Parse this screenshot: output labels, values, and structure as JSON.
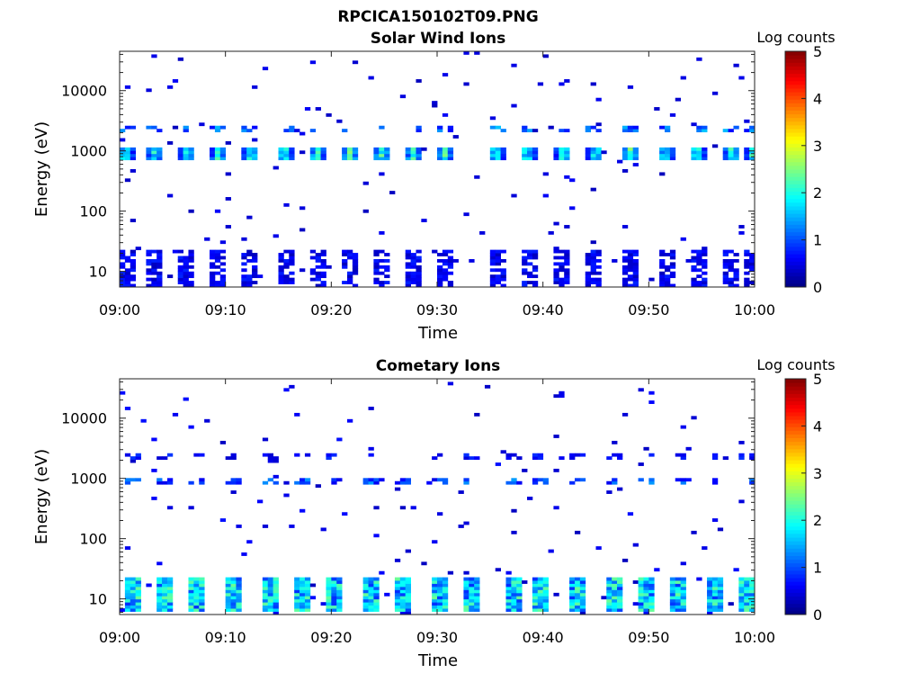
{
  "figure": {
    "filename": "RPCICA150102T09.PNG"
  },
  "chart_data": [
    {
      "type": "heatmap",
      "title": "Solar Wind Ions",
      "xlabel": "Time",
      "ylabel": "Energy (eV)",
      "x_range": [
        "09:00",
        "10:00"
      ],
      "x_ticks": [
        "09:00",
        "09:10",
        "09:20",
        "09:30",
        "09:40",
        "09:50",
        "10:00"
      ],
      "y_scale": "log",
      "y_range": [
        5.5,
        45000
      ],
      "y_ticks": [
        10,
        100,
        1000,
        10000
      ],
      "y_tick_labels": [
        "10",
        "100",
        "1000",
        "10000"
      ],
      "colorbar": {
        "label": "Log counts",
        "range": [
          0,
          5
        ],
        "ticks": [
          "0",
          "1",
          "2",
          "3",
          "4",
          "5"
        ],
        "colormap": "jet"
      },
      "band_center_eV": 900,
      "band_secondary_eV": 2200,
      "band_peak_log_counts": 2.6,
      "burst_minutes": [
        0.3,
        3.1,
        6.1,
        9.1,
        12.2,
        15.3,
        18.4,
        21.5,
        24.5,
        27.5,
        30.5,
        35.3,
        38.3,
        41.7,
        44.7,
        48.0,
        51.3,
        54.3,
        57.6,
        59.6
      ]
    },
    {
      "type": "heatmap",
      "title": "Cometary Ions",
      "xlabel": "Time",
      "ylabel": "Energy (eV)",
      "x_range": [
        "09:00",
        "10:00"
      ],
      "x_ticks": [
        "09:00",
        "09:10",
        "09:20",
        "09:30",
        "09:40",
        "09:50",
        "10:00"
      ],
      "y_scale": "log",
      "y_range": [
        5.5,
        45000
      ],
      "y_ticks": [
        10,
        100,
        1000,
        10000
      ],
      "y_tick_labels": [
        "10",
        "100",
        "1000",
        "10000"
      ],
      "colorbar": {
        "label": "Log counts",
        "range": [
          0,
          5
        ],
        "ticks": [
          "0",
          "1",
          "2",
          "3",
          "4",
          "5"
        ],
        "colormap": "jet"
      },
      "low_energy_band_eV": [
        6,
        22
      ],
      "low_energy_peak_log_counts": 2.4,
      "burst_minutes": [
        0.9,
        3.9,
        7.2,
        10.4,
        13.9,
        16.9,
        19.8,
        23.4,
        26.6,
        29.9,
        33.1,
        36.8,
        39.7,
        43.0,
        46.5,
        49.6,
        52.6,
        55.8,
        58.9
      ]
    }
  ]
}
